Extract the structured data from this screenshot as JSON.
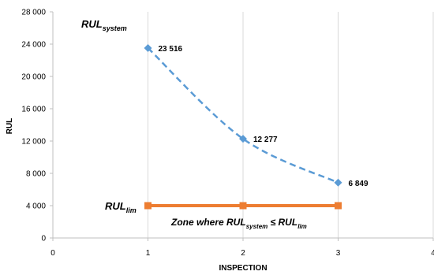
{
  "chart_data": {
    "type": "line",
    "xlabel": "INSPECTION",
    "ylabel": "RUL",
    "xlim": [
      0,
      4
    ],
    "ylim": [
      0,
      28000
    ],
    "x_ticks": [
      0,
      1,
      2,
      3,
      4
    ],
    "y_ticks": [
      0,
      4000,
      8000,
      12000,
      16000,
      20000,
      24000,
      28000
    ],
    "y_tick_labels": [
      "0",
      "4 000",
      "8 000",
      "12 000",
      "16 000",
      "20 000",
      "24 000",
      "28 000"
    ],
    "grid": "vertical",
    "series": [
      {
        "x": [
          1,
          2,
          3
        ],
        "values": [
          23516,
          12277,
          6849
        ],
        "data_labels": [
          "23 516",
          "12 277",
          "6 849"
        ],
        "color": "#5b9bd5",
        "style": "dashed",
        "marker": "diamond"
      },
      {
        "x": [
          1,
          2,
          3
        ],
        "values": [
          4000,
          4000,
          4000
        ],
        "color": "#ed7d31",
        "style": "solid",
        "marker": "square"
      }
    ],
    "annotations": {
      "rul_system": {
        "base": "RUL",
        "sub": "system"
      },
      "rul_lim": {
        "base": "RUL",
        "sub": "lim"
      },
      "zone": {
        "text1": "Zone where RUL",
        "sub1": "system",
        "op": " ≤ RUL",
        "sub2": "lim"
      }
    }
  }
}
